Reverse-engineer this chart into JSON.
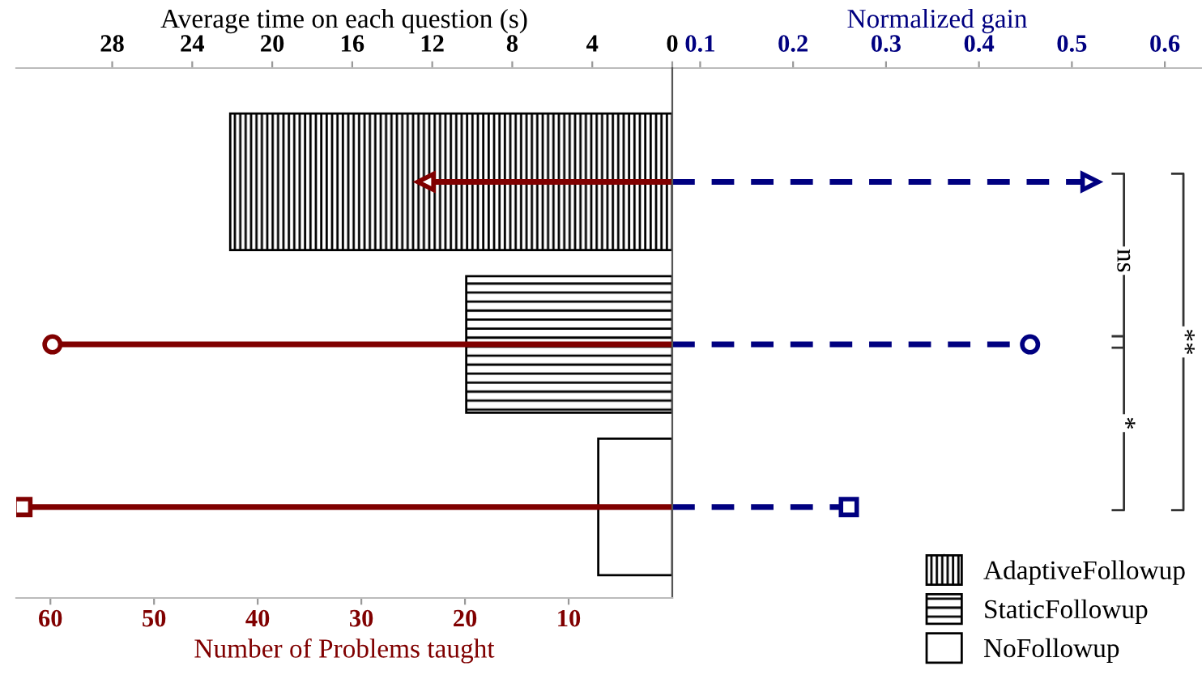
{
  "chart_data": [
    {
      "type": "bar",
      "orientation": "horizontal",
      "categories": [
        null,
        null,
        null
      ],
      "xlabel": "Number of Problems taught",
      "x2label": "Average time on each question (s)",
      "xlim": [
        63.3,
        0
      ],
      "xticks": [
        60,
        50,
        40,
        30,
        20,
        10
      ],
      "x2lim": [
        32.8,
        0
      ],
      "x2ticks": [
        28,
        24,
        20,
        16,
        12,
        8,
        4,
        0
      ],
      "series": [
        {
          "name": "AdaptiveFollowup",
          "axis": "x2",
          "color": "#000000",
          "values": [
            22.1,
            null,
            null
          ]
        },
        {
          "name": "StaticFollowup",
          "axis": "x2",
          "color": "#000000",
          "values": [
            null,
            10.3,
            null
          ]
        },
        {
          "name": "NoFollowup",
          "axis": "x2",
          "color": "#000000",
          "values": [
            null,
            null,
            3.7
          ]
        },
        {
          "type": "lollipop",
          "color": "#800000",
          "line_style": "solid",
          "values": [
            23.8,
            59.8,
            62.7
          ]
        }
      ],
      "legend": "bottom right",
      "grid": false
    },
    {
      "type": "lollipop",
      "orientation": "horizontal",
      "categories": [
        null,
        null,
        null
      ],
      "xlabel": "Normalized gain",
      "xlim": [
        0.07,
        0.64
      ],
      "xticks": [
        0.1,
        0.2,
        0.3,
        0.4,
        0.5,
        0.6
      ],
      "series": [
        {
          "color": "#000080",
          "line_style": "dashed",
          "values": [
            0.52,
            0.455,
            0.26
          ]
        }
      ],
      "grid": false,
      "annotations": [
        "ns",
        "*",
        "**"
      ]
    }
  ]
}
